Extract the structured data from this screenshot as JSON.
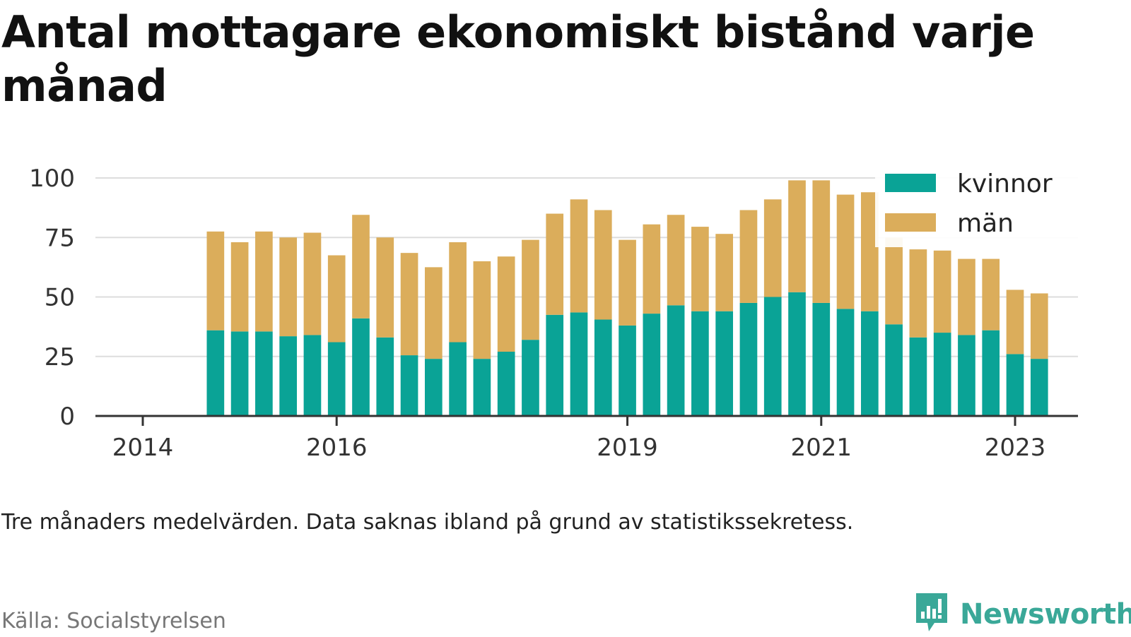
{
  "title": "Antal mottagare ekonomiskt bistånd varje månad",
  "note": "Tre månaders medelvärden. Data saknas ibland på grund av statistikssekretess.",
  "source": "Källa: Socialstyrelsen",
  "brand": {
    "name": "Newsworthy",
    "icon": "newsworthy-logo-icon",
    "color": "#3aa898"
  },
  "chart_data": {
    "type": "bar",
    "stacked": true,
    "title": "Antal mottagare ekonomiskt bistånd varje månad",
    "xlabel": "",
    "ylabel": "",
    "ylim": [
      0,
      100
    ],
    "yticks": [
      0,
      25,
      50,
      75,
      100
    ],
    "xlim": [
      "2014-01",
      "2023-08"
    ],
    "xticks": [
      {
        "label": "2014",
        "date": "2014-01"
      },
      {
        "label": "2016",
        "date": "2016-01"
      },
      {
        "label": "2019",
        "date": "2019-01"
      },
      {
        "label": "2021",
        "date": "2021-01"
      },
      {
        "label": "2023",
        "date": "2023-01"
      }
    ],
    "grid": true,
    "legend": "top-right",
    "x": [
      "2014-10",
      "2015-01",
      "2015-04",
      "2015-07",
      "2015-10",
      "2016-01",
      "2016-04",
      "2016-07",
      "2016-10",
      "2017-01",
      "2017-04",
      "2017-07",
      "2017-10",
      "2018-01",
      "2018-04",
      "2018-07",
      "2018-10",
      "2019-01",
      "2019-04",
      "2019-07",
      "2019-10",
      "2020-01",
      "2020-04",
      "2020-07",
      "2020-10",
      "2021-01",
      "2021-04",
      "2021-07",
      "2021-10",
      "2022-01",
      "2022-04",
      "2022-07",
      "2022-10",
      "2023-01",
      "2023-04"
    ],
    "series": [
      {
        "name": "kvinnor",
        "color": "#0aa396",
        "values": [
          36,
          35.5,
          35.5,
          33.5,
          34,
          31,
          41,
          33,
          25.5,
          24,
          31,
          24,
          27,
          32,
          42.5,
          43.5,
          40.5,
          38,
          43,
          46.5,
          44,
          44,
          47.5,
          50,
          52,
          47.5,
          45,
          44,
          38.5,
          33,
          35,
          34,
          36,
          26,
          24
        ]
      },
      {
        "name": "män",
        "color": "#dbad5b",
        "values": [
          41.5,
          37.5,
          42,
          41.5,
          43,
          36.5,
          43.5,
          42,
          43,
          38.5,
          42,
          41,
          40,
          42,
          42.5,
          47.5,
          46,
          36,
          37.5,
          38,
          35.5,
          32.5,
          39,
          41,
          47,
          51.5,
          48,
          50,
          36.5,
          37,
          34.5,
          32,
          30,
          27,
          27.5
        ]
      }
    ]
  }
}
